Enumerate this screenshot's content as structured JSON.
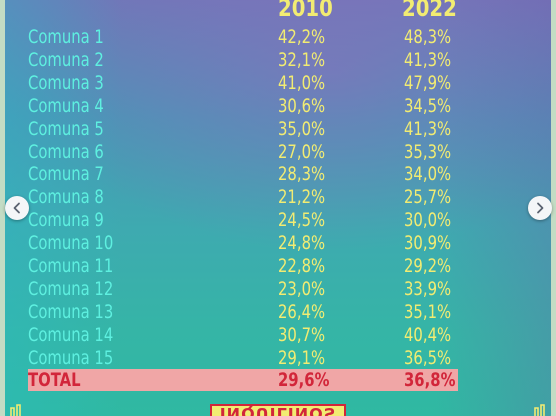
{
  "table": {
    "year_headers": [
      "2010",
      "2022"
    ],
    "rows": [
      {
        "name": "Comuna 1",
        "v2010": "42,2%",
        "v2022": "48,3%"
      },
      {
        "name": "Comuna 2",
        "v2010": "32,1%",
        "v2022": "41,3%"
      },
      {
        "name": "Comuna 3",
        "v2010": "41,0%",
        "v2022": "47,9%"
      },
      {
        "name": "Comuna 4",
        "v2010": "30,6%",
        "v2022": "34,5%"
      },
      {
        "name": "Comuna 5",
        "v2010": "35,0%",
        "v2022": "41,3%"
      },
      {
        "name": "Comuna 6",
        "v2010": "27,0%",
        "v2022": "35,3%"
      },
      {
        "name": "Comuna 7",
        "v2010": "28,3%",
        "v2022": "34,0%"
      },
      {
        "name": "Comuna 8",
        "v2010": "21,2%",
        "v2022": "25,7%"
      },
      {
        "name": "Comuna 9",
        "v2010": "24,5%",
        "v2022": "30,0%"
      },
      {
        "name": "Comuna 10",
        "v2010": "24,8%",
        "v2022": "30,9%"
      },
      {
        "name": "Comuna 11",
        "v2010": "22,8%",
        "v2022": "29,2%"
      },
      {
        "name": "Comuna 12",
        "v2010": "23,0%",
        "v2022": "33,9%"
      },
      {
        "name": "Comuna 13",
        "v2010": "26,4%",
        "v2022": "35,1%"
      },
      {
        "name": "Comuna 14",
        "v2010": "30,7%",
        "v2022": "40,4%"
      },
      {
        "name": "Comuna 15",
        "v2010": "29,1%",
        "v2022": "36,5%"
      }
    ],
    "total": {
      "name": "TOTAL",
      "v2010": "29,6%",
      "v2022": "36,8%"
    }
  },
  "bottom_label": "INQUILINOS",
  "navigation": {
    "prev_icon": "chevron-left-icon",
    "next_icon": "chevron-right-icon"
  },
  "colors": {
    "name_text": "#5ef0e0",
    "value_text": "#f2ec72",
    "total_text": "#d2263a",
    "total_band": "#f0a6a6"
  }
}
